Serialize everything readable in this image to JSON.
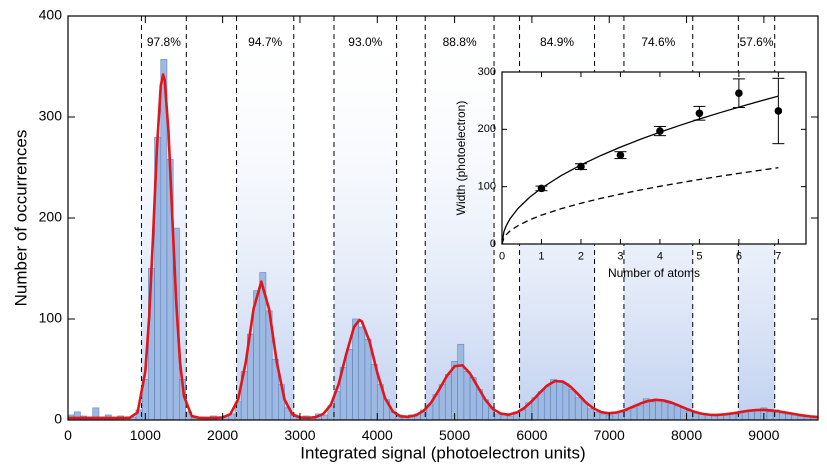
{
  "chart_data": [
    {
      "type": "histogram",
      "xlabel": "Integrated signal (photoelectron units)",
      "ylabel": "Number of occurrences",
      "xlim": [
        0,
        9700
      ],
      "ylim": [
        0,
        400
      ],
      "xticks": [
        0,
        1000,
        2000,
        3000,
        4000,
        5000,
        6000,
        7000,
        8000,
        9000
      ],
      "yticks": [
        0,
        100,
        200,
        300,
        400
      ],
      "color": "#9db9e2",
      "bins": [
        0,
        80,
        160,
        240,
        320,
        400,
        480,
        560,
        640,
        720,
        800,
        880,
        960,
        1040,
        1120,
        1200,
        1280,
        1360,
        1440,
        1520,
        1600,
        1680,
        1760,
        1840,
        1920,
        2000,
        2080,
        2160,
        2240,
        2320,
        2400,
        2480,
        2560,
        2640,
        2720,
        2800,
        2880,
        2960,
        3040,
        3120,
        3200,
        3280,
        3360,
        3440,
        3520,
        3600,
        3680,
        3760,
        3840,
        3920,
        4000,
        4080,
        4160,
        4240,
        4320,
        4400,
        4480,
        4560,
        4640,
        4720,
        4800,
        4880,
        4960,
        5040,
        5120,
        5200,
        5280,
        5360,
        5440,
        5520,
        5600,
        5680,
        5760,
        5840,
        5920,
        6000,
        6080,
        6160,
        6240,
        6320,
        6400,
        6480,
        6560,
        6640,
        6720,
        6800,
        6880,
        6960,
        7040,
        7120,
        7200,
        7280,
        7360,
        7440,
        7520,
        7600,
        7680,
        7760,
        7840,
        7920,
        8000,
        8080,
        8160,
        8240,
        8320,
        8400,
        8480,
        8560,
        8640,
        8720,
        8800,
        8880,
        8960,
        9040,
        9120,
        9200,
        9280,
        9360,
        9440,
        9520,
        9600,
        9680
      ],
      "values": [
        5,
        8,
        4,
        3,
        12,
        3,
        5,
        2,
        4,
        2,
        3,
        10,
        40,
        150,
        280,
        357,
        258,
        190,
        40,
        8,
        2,
        3,
        2,
        4,
        3,
        4,
        6,
        18,
        48,
        85,
        128,
        146,
        108,
        60,
        35,
        12,
        5,
        3,
        4,
        2,
        6,
        5,
        14,
        28,
        52,
        70,
        100,
        92,
        80,
        55,
        35,
        20,
        8,
        5,
        3,
        5,
        6,
        10,
        15,
        25,
        35,
        45,
        58,
        75,
        48,
        42,
        30,
        20,
        12,
        6,
        5,
        4,
        8,
        10,
        17,
        22,
        28,
        33,
        40,
        38,
        36,
        30,
        22,
        18,
        11,
        8,
        6,
        5,
        7,
        8,
        9,
        12,
        14,
        21,
        18,
        20,
        17,
        16,
        14,
        12,
        9,
        7,
        6,
        5,
        4,
        6,
        5,
        7,
        6,
        8,
        10,
        9,
        12,
        8,
        10,
        7,
        6,
        5,
        4,
        3,
        2
      ],
      "fit": {
        "color": "#e0161b",
        "x": [
          0,
          100,
          200,
          300,
          400,
          500,
          600,
          700,
          800,
          900,
          1000,
          1050,
          1100,
          1150,
          1200,
          1230,
          1250,
          1300,
          1350,
          1400,
          1450,
          1500,
          1600,
          1700,
          1800,
          1900,
          2000,
          2100,
          2200,
          2300,
          2400,
          2500,
          2600,
          2700,
          2800,
          2900,
          3000,
          3100,
          3200,
          3300,
          3400,
          3500,
          3600,
          3700,
          3770,
          3800,
          3900,
          4000,
          4100,
          4200,
          4300,
          4400,
          4500,
          4600,
          4700,
          4800,
          4900,
          5000,
          5100,
          5200,
          5300,
          5400,
          5500,
          5600,
          5700,
          5800,
          5900,
          6000,
          6100,
          6200,
          6300,
          6400,
          6500,
          6600,
          6700,
          6800,
          6900,
          7000,
          7100,
          7200,
          7300,
          7400,
          7500,
          7600,
          7700,
          7800,
          7900,
          8000,
          8100,
          8200,
          8300,
          8400,
          8500,
          8600,
          8700,
          8800,
          8900,
          9000,
          9100,
          9200,
          9300,
          9400,
          9500,
          9600,
          9700
        ],
        "values": [
          2,
          2,
          2,
          2,
          2,
          2,
          2,
          2,
          2.3,
          7.5,
          48,
          102,
          182,
          269,
          331,
          342,
          337,
          285,
          199,
          116,
          56.5,
          23.6,
          3.9,
          2.1,
          2,
          2,
          2.5,
          5.8,
          20.3,
          57.5,
          110,
          137,
          110,
          57.5,
          20.3,
          5.8,
          2.5,
          2.1,
          2.8,
          5.9,
          15.1,
          35.4,
          65.6,
          92.3,
          99,
          97.7,
          77.8,
          46.8,
          21.8,
          8.5,
          3.6,
          3.2,
          4.7,
          9.2,
          17.6,
          30,
          43.6,
          53.2,
          54.2,
          46,
          32.8,
          19.8,
          10.5,
          6.3,
          5.3,
          7.3,
          11.8,
          18.7,
          26.9,
          34.3,
          38.6,
          38.1,
          33,
          25.3,
          17.2,
          11.4,
          7.7,
          6.7,
          7.5,
          9.6,
          12.9,
          16.2,
          18.8,
          20,
          19.4,
          17.4,
          14.3,
          11.1,
          8.2,
          6.2,
          5.2,
          5,
          5.6,
          6.6,
          7.9,
          9.1,
          9.8,
          10,
          9.5,
          8.4,
          7.1,
          5.8,
          4.5,
          3.6,
          2.9
        ]
      },
      "regions": [
        {
          "x": [
            950,
            1530
          ],
          "label": "97.8%"
        },
        {
          "x": [
            2180,
            2920
          ],
          "label": "94.7%"
        },
        {
          "x": [
            3440,
            4250
          ],
          "label": "93.0%"
        },
        {
          "x": [
            4620,
            5510
          ],
          "label": "88.8%"
        },
        {
          "x": [
            5840,
            6810
          ],
          "label": "84.9%"
        },
        {
          "x": [
            7190,
            8080
          ],
          "label": "74.6%"
        },
        {
          "x": [
            8670,
            9140
          ],
          "label": "57.6%"
        }
      ]
    },
    {
      "type": "scatter",
      "xlabel": "Number of atoms",
      "ylabel": "Width (photoelectron)",
      "xlim": [
        0,
        7.7
      ],
      "ylim": [
        0,
        300
      ],
      "xticks": [
        0,
        1,
        2,
        3,
        4,
        5,
        6,
        7
      ],
      "yticks": [
        0,
        100,
        200,
        300
      ],
      "color": "#000000",
      "x": [
        1,
        2,
        3,
        4,
        5,
        6,
        7
      ],
      "values": [
        97,
        135,
        155,
        197,
        228,
        263,
        232
      ],
      "errors": [
        4,
        5,
        6,
        8,
        12,
        25,
        57
      ],
      "curves": [
        {
          "style": "solid",
          "x": [
            0,
            0.05,
            0.1,
            0.2,
            0.4,
            0.7,
            1,
            1.5,
            2,
            2.5,
            3,
            3.5,
            4,
            4.5,
            5,
            5.5,
            6,
            6.5,
            7
          ],
          "values": [
            0,
            21.8,
            30.8,
            43.6,
            61.7,
            81.6,
            97.5,
            119.4,
            137.9,
            154.2,
            168.9,
            182.4,
            195,
            206.8,
            218,
            228.6,
            238.8,
            248.5,
            257.9
          ]
        },
        {
          "style": "dashed",
          "x": [
            0,
            0.05,
            0.1,
            0.2,
            0.4,
            0.7,
            1,
            1.5,
            2,
            2.5,
            3,
            3.5,
            4,
            4.5,
            5,
            5.5,
            6,
            6.5,
            7
          ],
          "values": [
            0,
            11.2,
            15.9,
            22.5,
            31.8,
            42.1,
            50.3,
            61.6,
            71.1,
            79.5,
            87.1,
            94.1,
            100.6,
            106.7,
            112.5,
            118,
            123.2,
            128.2,
            133.1
          ]
        }
      ]
    }
  ]
}
